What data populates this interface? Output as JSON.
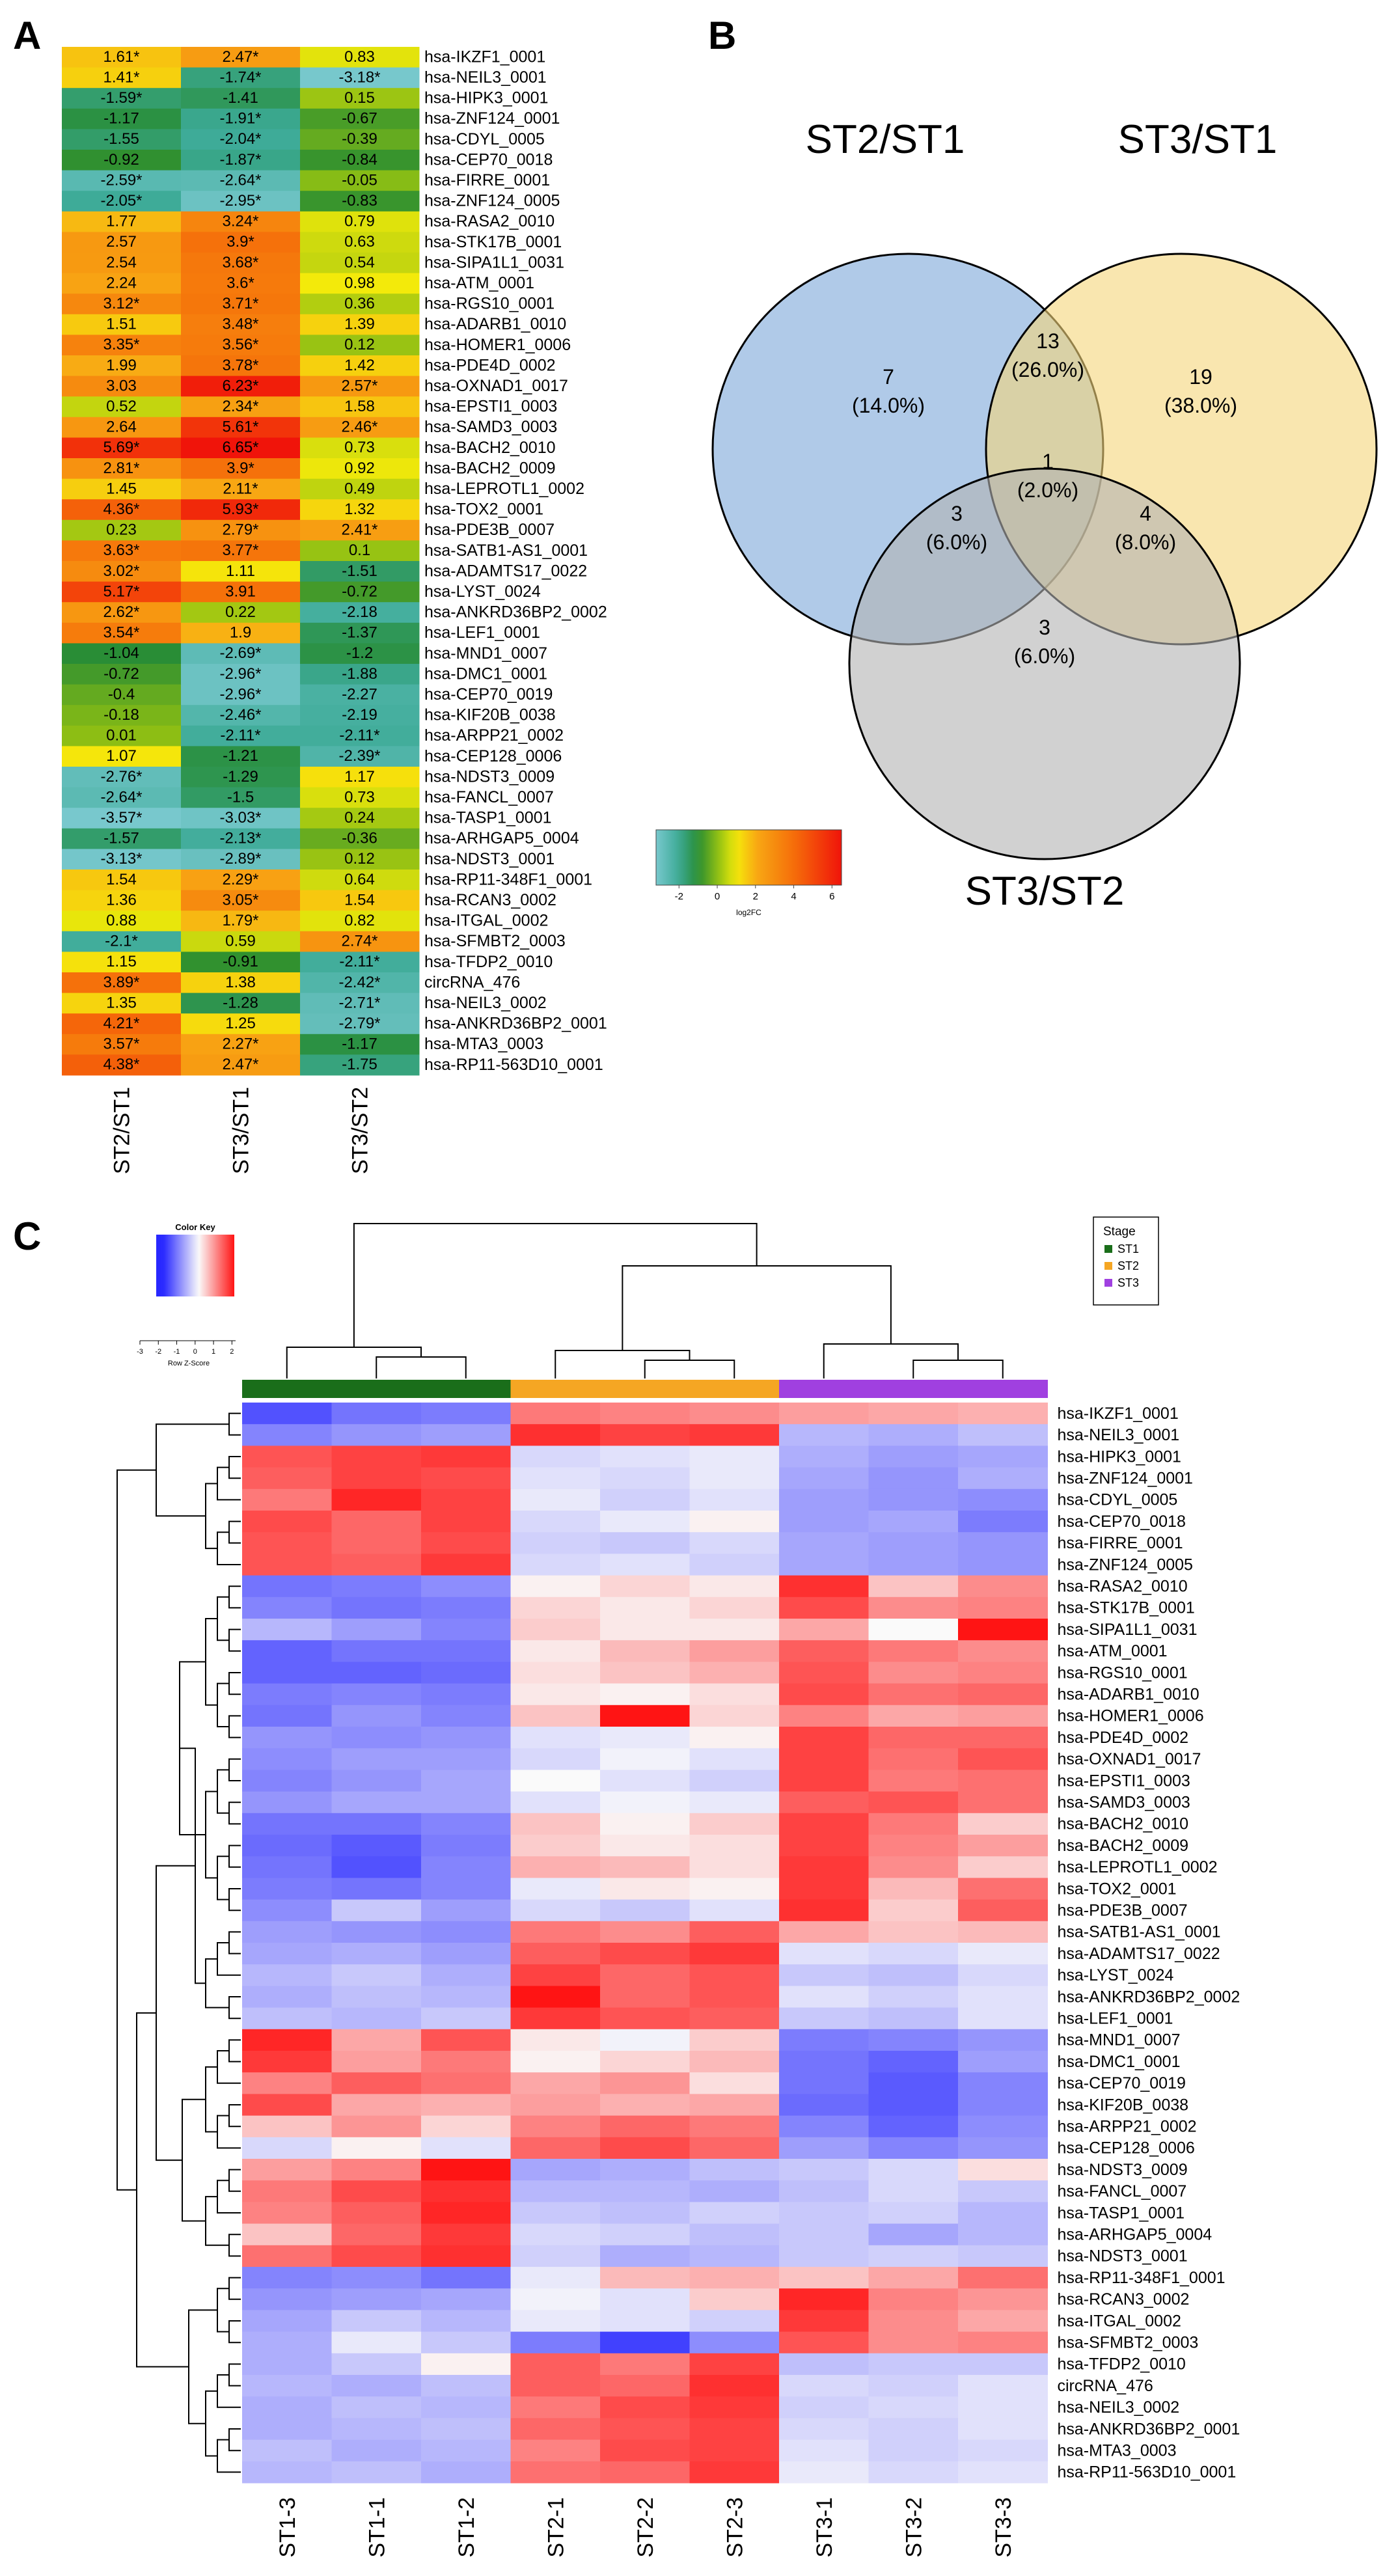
{
  "panels": {
    "a": "A",
    "b": "B",
    "c": "C"
  },
  "panelA": {
    "genes": [
      "hsa-IKZF1_0001",
      "hsa-NEIL3_0001",
      "hsa-HIPK3_0001",
      "hsa-ZNF124_0001",
      "hsa-CDYL_0005",
      "hsa-CEP70_0018",
      "hsa-FIRRE_0001",
      "hsa-ZNF124_0005",
      "hsa-RASA2_0010",
      "hsa-STK17B_0001",
      "hsa-SIPA1L1_0031",
      "hsa-ATM_0001",
      "hsa-RGS10_0001",
      "hsa-ADARB1_0010",
      "hsa-HOMER1_0006",
      "hsa-PDE4D_0002",
      "hsa-OXNAD1_0017",
      "hsa-EPSTI1_0003",
      "hsa-SAMD3_0003",
      "hsa-BACH2_0010",
      "hsa-BACH2_0009",
      "hsa-LEPROTL1_0002",
      "hsa-TOX2_0001",
      "hsa-PDE3B_0007",
      "hsa-SATB1-AS1_0001",
      "hsa-ADAMTS17_0022",
      "hsa-LYST_0024",
      "hsa-ANKRD36BP2_0002",
      "hsa-LEF1_0001",
      "hsa-MND1_0007",
      "hsa-DMC1_0001",
      "hsa-CEP70_0019",
      "hsa-KIF20B_0038",
      "hsa-ARPP21_0002",
      "hsa-CEP128_0006",
      "hsa-NDST3_0009",
      "hsa-FANCL_0007",
      "hsa-TASP1_0001",
      "hsa-ARHGAP5_0004",
      "hsa-NDST3_0001",
      "hsa-RP11-348F1_0001",
      "hsa-RCAN3_0002",
      "hsa-ITGAL_0002",
      "hsa-SFMBT2_0003",
      "hsa-TFDP2_0010",
      "circRNA_476",
      "hsa-NEIL3_0002",
      "hsa-ANKRD36BP2_0001",
      "hsa-MTA3_0003",
      "hsa-RP11-563D10_0001"
    ],
    "columns": [
      "ST2/ST1",
      "ST3/ST1",
      "ST3/ST2"
    ],
    "values": [
      [
        "1.61*",
        "2.47*",
        "0.83"
      ],
      [
        "1.41*",
        "-1.74*",
        "-3.18*"
      ],
      [
        "-1.59*",
        "-1.41",
        "0.15"
      ],
      [
        "-1.17",
        "-1.91*",
        "-0.67"
      ],
      [
        "-1.55",
        "-2.04*",
        "-0.39"
      ],
      [
        "-0.92",
        "-1.87*",
        "-0.84"
      ],
      [
        "-2.59*",
        "-2.64*",
        "-0.05"
      ],
      [
        "-2.05*",
        "-2.95*",
        "-0.83"
      ],
      [
        "1.77",
        "3.24*",
        "0.79"
      ],
      [
        "2.57",
        "3.9*",
        "0.63"
      ],
      [
        "2.54",
        "3.68*",
        "0.54"
      ],
      [
        "2.24",
        "3.6*",
        "0.98"
      ],
      [
        "3.12*",
        "3.71*",
        "0.36"
      ],
      [
        "1.51",
        "3.48*",
        "1.39"
      ],
      [
        "3.35*",
        "3.56*",
        "0.12"
      ],
      [
        "1.99",
        "3.78*",
        "1.42"
      ],
      [
        "3.03",
        "6.23*",
        "2.57*"
      ],
      [
        "0.52",
        "2.34*",
        "1.58"
      ],
      [
        "2.64",
        "5.61*",
        "2.46*"
      ],
      [
        "5.69*",
        "6.65*",
        "0.73"
      ],
      [
        "2.81*",
        "3.9*",
        "0.92"
      ],
      [
        "1.45",
        "2.11*",
        "0.49"
      ],
      [
        "4.36*",
        "5.93*",
        "1.32"
      ],
      [
        "0.23",
        "2.79*",
        "2.41*"
      ],
      [
        "3.63*",
        "3.77*",
        "0.1"
      ],
      [
        "3.02*",
        "1.11",
        "-1.51"
      ],
      [
        "5.17*",
        "3.91",
        "-0.72"
      ],
      [
        "2.62*",
        "0.22",
        "-2.18"
      ],
      [
        "3.54*",
        "1.9",
        "-1.37"
      ],
      [
        "-1.04",
        "-2.69*",
        "-1.2"
      ],
      [
        "-0.72",
        "-2.96*",
        "-1.88"
      ],
      [
        "-0.4",
        "-2.96*",
        "-2.27"
      ],
      [
        "-0.18",
        "-2.46*",
        "-2.19"
      ],
      [
        "0.01",
        "-2.11*",
        "-2.11*"
      ],
      [
        "1.07",
        "-1.21",
        "-2.39*"
      ],
      [
        "-2.76*",
        "-1.29",
        "1.17"
      ],
      [
        "-2.64*",
        "-1.5",
        "0.73"
      ],
      [
        "-3.57*",
        "-3.03*",
        "0.24"
      ],
      [
        "-1.57",
        "-2.13*",
        "-0.36"
      ],
      [
        "-3.13*",
        "-2.89*",
        "0.12"
      ],
      [
        "1.54",
        "2.29*",
        "0.64"
      ],
      [
        "1.36",
        "3.05*",
        "1.54"
      ],
      [
        "0.88",
        "1.79*",
        "0.82"
      ],
      [
        "-2.1*",
        "0.59",
        "2.74*"
      ],
      [
        "1.15",
        "-0.91",
        "-2.11*"
      ],
      [
        "3.89*",
        "1.38",
        "-2.42*"
      ],
      [
        "1.35",
        "-1.28",
        "-2.71*"
      ],
      [
        "4.21*",
        "1.25",
        "-2.79*"
      ],
      [
        "3.57*",
        "2.27*",
        "-1.17"
      ],
      [
        "4.38*",
        "2.47*",
        "-1.75"
      ]
    ]
  },
  "venn": {
    "sets": [
      {
        "name": "ST2/ST1",
        "color": "#7ba7d9",
        "text_color": "#2e74b5"
      },
      {
        "name": "ST3/ST1",
        "color": "#f5d57a",
        "text_color": "#f2b92d"
      },
      {
        "name": "ST3/ST2",
        "color": "#b3b3b3",
        "text_color": "#8c8c8c"
      }
    ],
    "regions": [
      {
        "id": "st2_only",
        "count": "7",
        "pct": "(14.0%)"
      },
      {
        "id": "st2_st3st1",
        "count": "13",
        "pct": "(26.0%)"
      },
      {
        "id": "st3st1_only",
        "count": "19",
        "pct": "(38.0%)"
      },
      {
        "id": "all",
        "count": "1",
        "pct": "(2.0%)"
      },
      {
        "id": "st2_st3st2",
        "count": "3",
        "pct": "(6.0%)"
      },
      {
        "id": "st3st1_st3st2",
        "count": "4",
        "pct": "(8.0%)"
      },
      {
        "id": "st3st2_only",
        "count": "3",
        "pct": "(6.0%)"
      }
    ],
    "legend": {
      "ticks": [
        "-2",
        "0",
        "2",
        "4",
        "6"
      ],
      "label": "log2FC"
    }
  },
  "panelC": {
    "color_key": {
      "title": "Color Key",
      "ticks": [
        "-3",
        "-2",
        "-1",
        "0",
        "1",
        "2"
      ],
      "label": "Row Z-Score"
    },
    "stage_legend": {
      "title": "Stage",
      "items": [
        {
          "label": "ST1",
          "color": "#1a6e1a"
        },
        {
          "label": "ST2",
          "color": "#f5a623"
        },
        {
          "label": "ST3",
          "color": "#a040e0"
        }
      ]
    },
    "samples": [
      "ST1-3",
      "ST1-1",
      "ST1-2",
      "ST2-1",
      "ST2-2",
      "ST2-3",
      "ST3-1",
      "ST3-2",
      "ST3-3"
    ],
    "sample_stage": [
      0,
      0,
      0,
      1,
      1,
      1,
      2,
      2,
      2
    ],
    "zscores": [
      [
        -2,
        -1.6,
        -1.5,
        1.4,
        1.3,
        1.2,
        1.0,
        0.9,
        0.8
      ],
      [
        -1.4,
        -1.2,
        -1.1,
        2.2,
        2.0,
        2.1,
        -0.8,
        -0.9,
        -0.7
      ],
      [
        1.8,
        2.0,
        2.1,
        -0.4,
        -0.3,
        -0.2,
        -0.9,
        -1.1,
        -1.0
      ],
      [
        1.7,
        2.0,
        1.9,
        -0.3,
        -0.4,
        -0.2,
        -1.0,
        -1.2,
        -0.9
      ],
      [
        1.4,
        2.3,
        2.0,
        -0.2,
        -0.5,
        -0.3,
        -1.1,
        -1.2,
        -1.3
      ],
      [
        1.9,
        1.6,
        2.0,
        -0.4,
        -0.2,
        0.1,
        -1.1,
        -1.0,
        -1.5
      ],
      [
        1.8,
        1.6,
        1.9,
        -0.5,
        -0.6,
        -0.4,
        -1.0,
        -1.1,
        -1.2
      ],
      [
        1.8,
        1.7,
        2.1,
        -0.4,
        -0.3,
        -0.5,
        -1.0,
        -1.1,
        -1.2
      ],
      [
        -1.6,
        -1.5,
        -1.3,
        0.1,
        0.4,
        0.2,
        2.2,
        0.6,
        1.2
      ],
      [
        -1.4,
        -1.6,
        -1.5,
        0.4,
        0.2,
        0.4,
        1.9,
        1.2,
        1.3
      ],
      [
        -0.8,
        -1.1,
        -1.4,
        0.5,
        0.2,
        0.2,
        0.9,
        0.0,
        2.5
      ],
      [
        -1.8,
        -1.6,
        -1.6,
        0.2,
        0.7,
        1.0,
        1.7,
        1.4,
        1.2
      ],
      [
        -1.8,
        -1.8,
        -1.7,
        0.3,
        0.6,
        0.8,
        1.8,
        1.2,
        1.3
      ],
      [
        -1.5,
        -1.4,
        -1.5,
        0.2,
        0.1,
        0.3,
        1.9,
        1.5,
        1.6
      ],
      [
        -1.6,
        -1.2,
        -1.4,
        0.6,
        2.5,
        0.4,
        1.3,
        0.9,
        1.0
      ],
      [
        -1.2,
        -1.3,
        -1.2,
        -0.3,
        -0.2,
        0.1,
        2.0,
        1.6,
        1.6
      ],
      [
        -1.3,
        -1.1,
        -1.1,
        -0.4,
        -0.1,
        -0.3,
        2.0,
        1.5,
        1.8
      ],
      [
        -1.4,
        -1.2,
        -1.0,
        0.0,
        -0.3,
        -0.5,
        2.0,
        1.4,
        1.5
      ],
      [
        -1.2,
        -1.0,
        -1.0,
        -0.3,
        -0.1,
        -0.2,
        1.7,
        1.8,
        1.5
      ],
      [
        -1.6,
        -1.6,
        -1.4,
        0.6,
        0.1,
        0.5,
        2.0,
        1.4,
        0.5
      ],
      [
        -1.7,
        -1.9,
        -1.5,
        0.5,
        0.2,
        0.3,
        2.0,
        1.3,
        1.0
      ],
      [
        -1.6,
        -2.0,
        -1.4,
        0.8,
        0.7,
        0.3,
        2.1,
        1.2,
        0.5
      ],
      [
        -1.5,
        -1.6,
        -1.4,
        -0.2,
        0.2,
        0.1,
        2.1,
        0.7,
        1.5
      ],
      [
        -1.3,
        -0.6,
        -1.1,
        -0.4,
        -0.6,
        -0.3,
        2.2,
        0.5,
        1.7
      ],
      [
        -1.1,
        -1.2,
        -1.3,
        1.4,
        1.2,
        1.7,
        0.9,
        0.6,
        0.7
      ],
      [
        -1.0,
        -0.9,
        -1.1,
        1.7,
        1.9,
        2.1,
        -0.3,
        -0.4,
        -0.2
      ],
      [
        -0.8,
        -0.6,
        -0.9,
        2.0,
        1.6,
        1.8,
        -0.6,
        -0.7,
        -0.4
      ],
      [
        -0.9,
        -0.7,
        -0.8,
        2.6,
        1.6,
        1.8,
        -0.3,
        -0.5,
        -0.3
      ],
      [
        -0.7,
        -0.8,
        -0.6,
        2.1,
        1.8,
        1.7,
        -0.6,
        -0.7,
        -0.3
      ],
      [
        2.3,
        0.9,
        1.8,
        0.2,
        -0.1,
        0.5,
        -1.5,
        -1.4,
        -1.2
      ],
      [
        2.1,
        1.0,
        1.4,
        0.1,
        0.4,
        0.7,
        -1.6,
        -1.8,
        -1.1
      ],
      [
        1.3,
        1.7,
        1.5,
        0.9,
        1.1,
        0.3,
        -1.6,
        -1.9,
        -1.4
      ],
      [
        1.9,
        0.9,
        0.8,
        1.0,
        0.8,
        0.9,
        -1.7,
        -1.9,
        -1.4
      ],
      [
        0.6,
        1.1,
        0.4,
        1.3,
        1.6,
        1.4,
        -1.4,
        -1.8,
        -1.3
      ],
      [
        -0.4,
        0.1,
        -0.3,
        1.6,
        1.9,
        1.6,
        -1.1,
        -1.4,
        -1.2
      ],
      [
        1.0,
        1.3,
        2.5,
        -1.0,
        -0.9,
        -0.7,
        -0.6,
        -0.4,
        0.3
      ],
      [
        1.4,
        1.9,
        2.2,
        -0.8,
        -0.8,
        -0.9,
        -0.7,
        -0.4,
        -0.6
      ],
      [
        1.3,
        1.7,
        2.3,
        -0.6,
        -0.7,
        -0.5,
        -0.6,
        -0.5,
        -0.8
      ],
      [
        0.6,
        1.6,
        2.1,
        -0.4,
        -0.5,
        -0.7,
        -0.6,
        -1.0,
        -0.8
      ],
      [
        1.5,
        1.9,
        2.2,
        -0.5,
        -0.9,
        -0.8,
        -0.6,
        -0.5,
        -0.6
      ],
      [
        -1.4,
        -1.3,
        -1.6,
        -0.2,
        0.7,
        0.8,
        0.6,
        0.9,
        1.5
      ],
      [
        -1.2,
        -1.1,
        -1.0,
        -0.1,
        -0.3,
        0.5,
        2.3,
        1.3,
        1.1
      ],
      [
        -1.0,
        -0.6,
        -0.8,
        -0.2,
        -0.3,
        -0.5,
        2.1,
        1.2,
        0.9
      ],
      [
        -0.9,
        -0.2,
        -0.6,
        -1.5,
        -2.2,
        -1.3,
        1.8,
        1.2,
        1.3
      ],
      [
        -0.9,
        -0.6,
        0.1,
        1.7,
        1.4,
        2.0,
        -0.7,
        -0.6,
        -0.6
      ],
      [
        -0.8,
        -0.9,
        -0.7,
        1.7,
        1.6,
        2.2,
        -0.4,
        -0.5,
        -0.3
      ],
      [
        -0.9,
        -0.7,
        -0.8,
        1.4,
        1.9,
        2.1,
        -0.5,
        -0.4,
        -0.3
      ],
      [
        -0.9,
        -0.8,
        -0.7,
        1.6,
        1.8,
        2.0,
        -0.4,
        -0.5,
        -0.3
      ],
      [
        -0.7,
        -0.9,
        -0.8,
        1.3,
        1.9,
        2.0,
        -0.3,
        -0.5,
        -0.4
      ],
      [
        -0.8,
        -0.7,
        -0.9,
        1.5,
        1.6,
        2.1,
        -0.2,
        -0.4,
        -0.3
      ]
    ]
  }
}
